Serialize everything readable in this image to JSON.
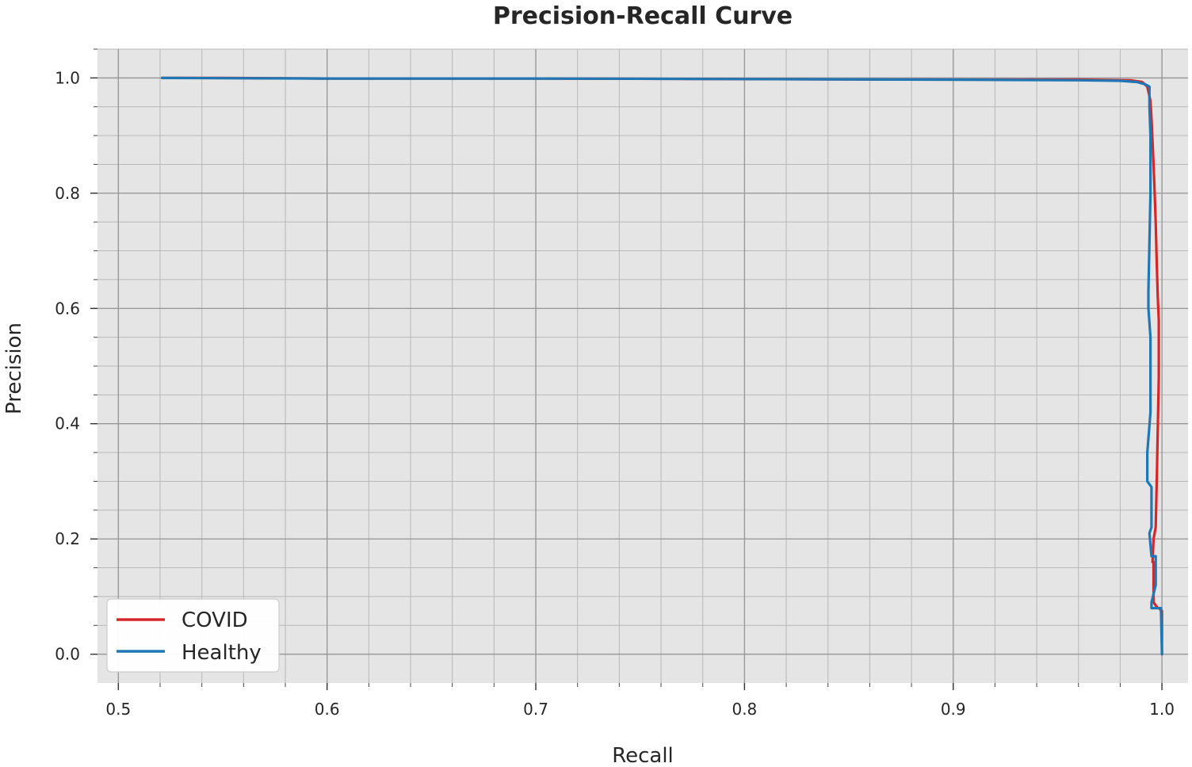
{
  "chart_data": {
    "type": "line",
    "title": "Precision-Recall Curve",
    "xlabel": "Recall",
    "ylabel": "Precision",
    "xlim": [
      0.49,
      1.0125
    ],
    "ylim": [
      -0.05,
      1.05
    ],
    "xticks": [
      0.5,
      0.6,
      0.7,
      0.8,
      0.9,
      1.0
    ],
    "yticks": [
      0.0,
      0.2,
      0.4,
      0.6,
      0.8,
      1.0
    ],
    "xtick_labels": [
      "0.5",
      "0.6",
      "0.7",
      "0.8",
      "0.9",
      "1.0"
    ],
    "ytick_labels": [
      "0.0",
      "0.2",
      "0.4",
      "0.6",
      "0.8",
      "1.0"
    ],
    "x_minor_step": 0.02,
    "y_minor_step": 0.05,
    "grid": true,
    "background": "#e5e5e5",
    "legend_position": "lower-left",
    "series": [
      {
        "name": "COVID",
        "color": "#d62728",
        "x": [
          0.521,
          0.55,
          0.6,
          0.7,
          0.8,
          0.9,
          0.96,
          0.985,
          0.9905,
          0.993,
          0.9945,
          0.995,
          0.9955,
          0.996,
          0.9965,
          0.997,
          0.9975,
          0.998,
          0.9985,
          0.9985,
          0.9975,
          0.997,
          0.996,
          0.9955,
          0.996,
          0.996,
          0.998,
          0.9985,
          1.0,
          1.0
        ],
        "y": [
          1.0,
          1.0,
          0.999,
          0.999,
          0.998,
          0.997,
          0.997,
          0.996,
          0.993,
          0.985,
          0.96,
          0.93,
          0.89,
          0.85,
          0.8,
          0.75,
          0.68,
          0.62,
          0.58,
          0.48,
          0.3,
          0.22,
          0.2,
          0.16,
          0.16,
          0.09,
          0.08,
          0.08,
          0.075,
          0.0
        ]
      },
      {
        "name": "Healthy",
        "color": "#1f77b4",
        "x": [
          0.521,
          0.6,
          0.7,
          0.8,
          0.9,
          0.96,
          0.98,
          0.988,
          0.992,
          0.994,
          0.994,
          0.9945,
          0.9945,
          0.9935,
          0.9935,
          0.9945,
          0.9945,
          0.993,
          0.993,
          0.995,
          0.995,
          0.994,
          0.995,
          0.997,
          0.997,
          0.995,
          0.995,
          0.9995,
          0.9995,
          1.0
        ],
        "y": [
          1.0,
          0.999,
          0.999,
          0.998,
          0.997,
          0.996,
          0.995,
          0.993,
          0.989,
          0.985,
          0.95,
          0.9,
          0.8,
          0.63,
          0.6,
          0.55,
          0.42,
          0.35,
          0.3,
          0.29,
          0.22,
          0.21,
          0.17,
          0.17,
          0.12,
          0.09,
          0.08,
          0.08,
          0.08,
          0.0
        ]
      }
    ]
  }
}
